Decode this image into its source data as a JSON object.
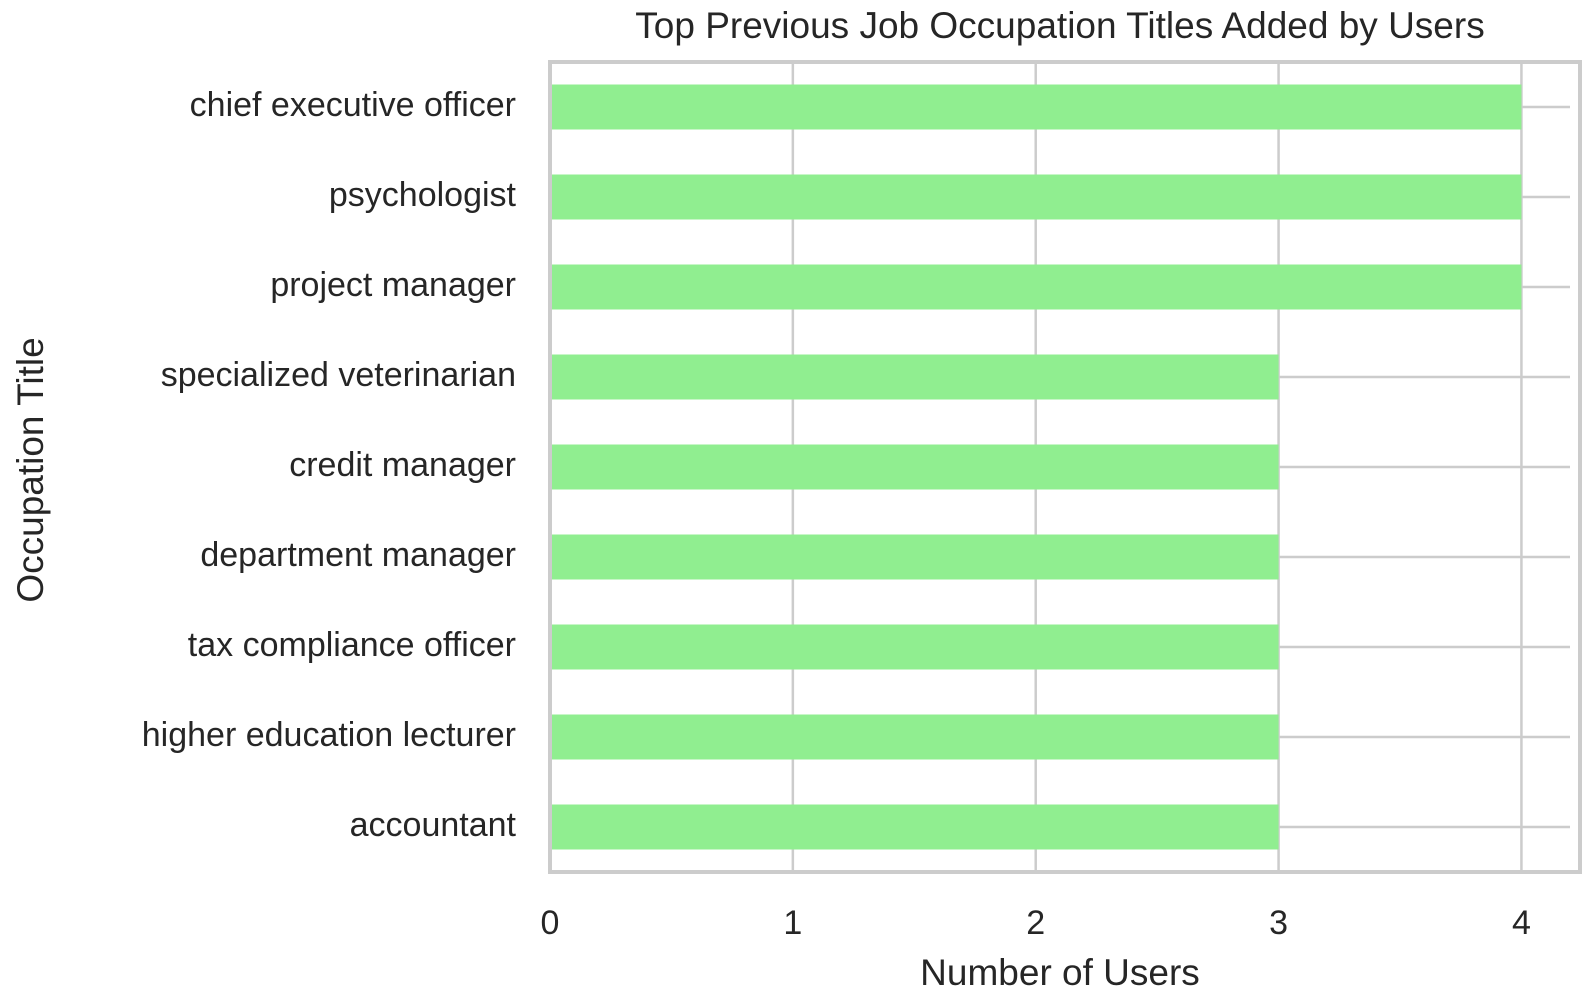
{
  "chart_data": {
    "type": "barh",
    "title": "Top Previous Job Occupation Titles Added by Users",
    "x_label": "Number of Users",
    "y_label": "Occupation Title",
    "categories": [
      "chief executive officer",
      "psychologist",
      "project manager",
      "specialized veterinarian",
      "credit manager",
      "department manager",
      "tax compliance officer",
      "higher education lecturer",
      "accountant"
    ],
    "values": [
      4,
      4,
      4,
      3,
      3,
      3,
      3,
      3,
      3
    ],
    "color": "#90ee90",
    "xlim": [
      0,
      4.2
    ],
    "xticks": [
      0,
      1,
      2,
      3,
      4
    ],
    "grid": true
  }
}
